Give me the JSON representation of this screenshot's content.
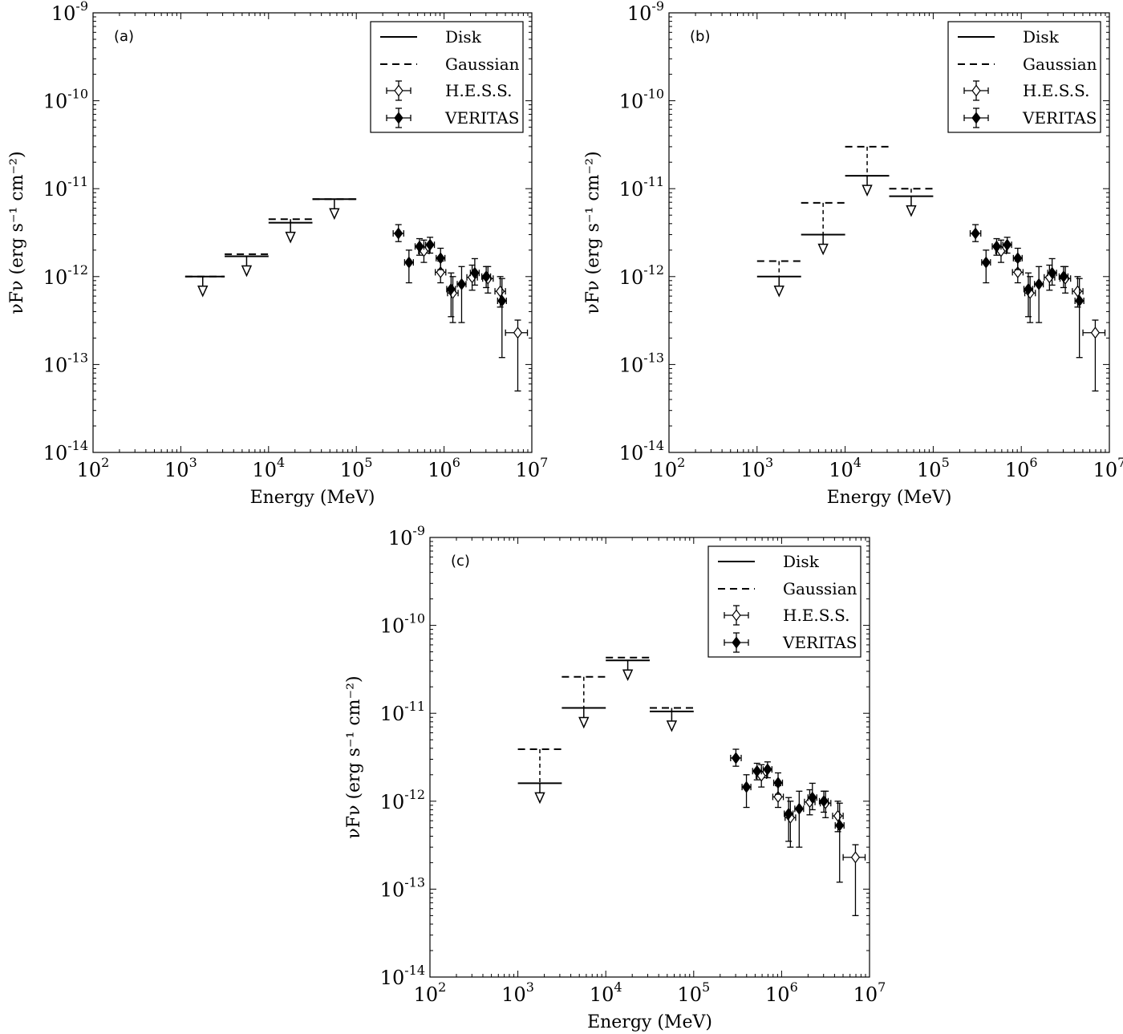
{
  "chart_data": [
    {
      "type": "scatter",
      "panel_label": "(a)",
      "title": "",
      "xlabel": "Energy (MeV)",
      "ylabel": "νFν (erg s⁻¹ cm⁻²)",
      "xscale": "log",
      "yscale": "log",
      "xlim": [
        100,
        10000000
      ],
      "ylim": [
        1e-14,
        1e-09
      ],
      "x_tick_labels": [
        "10^2",
        "10^3",
        "10^4",
        "10^5",
        "10^6",
        "10^7"
      ],
      "y_tick_labels": [
        "10^-14",
        "10^-13",
        "10^-12",
        "10^-11",
        "10^-10",
        "10^-9"
      ],
      "grid": false,
      "legend_position": "top-right",
      "legend": [
        "Disk",
        "Gaussian",
        "H.E.S.S.",
        "VERITAS"
      ],
      "upper_limits": {
        "disk": [
          {
            "x_low": 1122,
            "x_high": 3162,
            "x": 1778,
            "y": 1e-12
          },
          {
            "x_low": 3162,
            "x_high": 10000,
            "x": 5623,
            "y": 1.7e-12
          },
          {
            "x_low": 10000,
            "x_high": 31623,
            "x": 17783,
            "y": 4.1e-12
          },
          {
            "x_low": 31623,
            "x_high": 100000,
            "x": 56234,
            "y": 7.6e-12
          }
        ],
        "gaussian": [
          {
            "x_low": 1122,
            "x_high": 3162,
            "x": 1778,
            "y": 1e-12
          },
          {
            "x_low": 3162,
            "x_high": 10000,
            "x": 5623,
            "y": 1.8e-12
          },
          {
            "x_low": 10000,
            "x_high": 31623,
            "x": 17783,
            "y": 4.5e-12
          },
          {
            "x_low": 31623,
            "x_high": 100000,
            "x": 56234,
            "y": 7.6e-12
          }
        ]
      }
    },
    {
      "type": "scatter",
      "panel_label": "(b)",
      "title": "",
      "xlabel": "Energy (MeV)",
      "ylabel": "νFν (erg s⁻¹ cm⁻²)",
      "xscale": "log",
      "yscale": "log",
      "xlim": [
        100,
        10000000
      ],
      "ylim": [
        1e-14,
        1e-09
      ],
      "x_tick_labels": [
        "10^2",
        "10^3",
        "10^4",
        "10^5",
        "10^6",
        "10^7"
      ],
      "y_tick_labels": [
        "10^-14",
        "10^-13",
        "10^-12",
        "10^-11",
        "10^-10",
        "10^-9"
      ],
      "grid": false,
      "legend_position": "top-right",
      "legend": [
        "Disk",
        "Gaussian",
        "H.E.S.S.",
        "VERITAS"
      ],
      "upper_limits": {
        "disk": [
          {
            "x_low": 1000,
            "x_high": 3162,
            "x": 1778,
            "y": 1e-12
          },
          {
            "x_low": 3162,
            "x_high": 10000,
            "x": 5623,
            "y": 3e-12
          },
          {
            "x_low": 10000,
            "x_high": 31623,
            "x": 17783,
            "y": 1.4e-11
          },
          {
            "x_low": 31623,
            "x_high": 100000,
            "x": 56234,
            "y": 8.2e-12
          }
        ],
        "gaussian": [
          {
            "x_low": 1000,
            "x_high": 3162,
            "x": 1778,
            "y": 1.5e-12
          },
          {
            "x_low": 3162,
            "x_high": 10000,
            "x": 5623,
            "y": 6.9e-12
          },
          {
            "x_low": 10000,
            "x_high": 31623,
            "x": 17783,
            "y": 3e-11
          },
          {
            "x_low": 31623,
            "x_high": 100000,
            "x": 56234,
            "y": 1e-11
          }
        ]
      }
    },
    {
      "type": "scatter",
      "panel_label": "(c)",
      "title": "",
      "xlabel": "Energy (MeV)",
      "ylabel": "νFν (erg s⁻¹ cm⁻²)",
      "xscale": "log",
      "yscale": "log",
      "xlim": [
        100,
        10000000
      ],
      "ylim": [
        1e-14,
        1e-09
      ],
      "x_tick_labels": [
        "10^2",
        "10^3",
        "10^4",
        "10^5",
        "10^6",
        "10^7"
      ],
      "y_tick_labels": [
        "10^-14",
        "10^-13",
        "10^-12",
        "10^-11",
        "10^-10",
        "10^-9"
      ],
      "grid": false,
      "legend_position": "top-right",
      "legend": [
        "Disk",
        "Gaussian",
        "H.E.S.S.",
        "VERITAS"
      ],
      "upper_limits": {
        "disk": [
          {
            "x_low": 1000,
            "x_high": 3162,
            "x": 1778,
            "y": 1.6e-12
          },
          {
            "x_low": 3162,
            "x_high": 10000,
            "x": 5623,
            "y": 1.15e-11
          },
          {
            "x_low": 10000,
            "x_high": 31623,
            "x": 17783,
            "y": 4e-11
          },
          {
            "x_low": 31623,
            "x_high": 100000,
            "x": 56234,
            "y": 1.05e-11
          }
        ],
        "gaussian": [
          {
            "x_low": 1000,
            "x_high": 3162,
            "x": 1778,
            "y": 3.9e-12
          },
          {
            "x_low": 3162,
            "x_high": 10000,
            "x": 5623,
            "y": 2.6e-11
          },
          {
            "x_low": 10000,
            "x_high": 31623,
            "x": 17783,
            "y": 4.3e-11
          },
          {
            "x_low": 31623,
            "x_high": 100000,
            "x": 56234,
            "y": 1.15e-11
          }
        ]
      }
    }
  ],
  "measurements": {
    "hess": [
      {
        "x": 589000,
        "y": 1.95e-12,
        "xlo": 513000,
        "xhi": 676000,
        "ylo": 1.45e-12,
        "yhi": 2.6e-12
      },
      {
        "x": 912000,
        "y": 1.12e-12,
        "xlo": 794000,
        "xhi": 1047000,
        "ylo": 8.5e-13,
        "yhi": 1.5e-12
      },
      {
        "x": 1259000,
        "y": 6.5e-13,
        "xlo": 1096000,
        "xhi": 1445000,
        "ylo": 3e-13,
        "yhi": 1e-12
      },
      {
        "x": 2089000,
        "y": 9.8e-13,
        "xlo": 1820000,
        "xhi": 2399000,
        "ylo": 7e-13,
        "yhi": 1.35e-12
      },
      {
        "x": 3162000,
        "y": 9.5e-13,
        "xlo": 2754000,
        "xhi": 3631000,
        "ylo": 6.5e-13,
        "yhi": 1.3e-12
      },
      {
        "x": 4365000,
        "y": 6.8e-13,
        "xlo": 3802000,
        "xhi": 5012000,
        "ylo": 4.5e-13,
        "yhi": 1e-12
      },
      {
        "x": 6918000,
        "y": 2.3e-13,
        "xlo": 5012000,
        "xhi": 8913000,
        "ylo": 5e-14,
        "yhi": 3.2e-13
      }
    ],
    "veritas": [
      {
        "x": 302000,
        "y": 3.1e-12,
        "xlo": 263000,
        "xhi": 347000,
        "ylo": 2.5e-12,
        "yhi": 3.9e-12
      },
      {
        "x": 398000,
        "y": 1.45e-12,
        "xlo": 355000,
        "xhi": 447000,
        "ylo": 8.5e-13,
        "yhi": 2e-12
      },
      {
        "x": 525000,
        "y": 2.2e-12,
        "xlo": 468000,
        "xhi": 589000,
        "ylo": 1.75e-12,
        "yhi": 2.7e-12
      },
      {
        "x": 692000,
        "y": 2.3e-12,
        "xlo": 617000,
        "xhi": 776000,
        "ylo": 1.85e-12,
        "yhi": 2.8e-12
      },
      {
        "x": 912000,
        "y": 1.62e-12,
        "xlo": 813000,
        "xhi": 1023000,
        "ylo": 1.2e-12,
        "yhi": 2.1e-12
      },
      {
        "x": 1202000,
        "y": 7.2e-13,
        "xlo": 1072000,
        "xhi": 1349000,
        "ylo": 3.5e-13,
        "yhi": 1.1e-12
      },
      {
        "x": 1585000,
        "y": 8.2e-13,
        "xlo": 1413000,
        "xhi": 1778000,
        "ylo": 3e-13,
        "yhi": 1.3e-12
      },
      {
        "x": 2239000,
        "y": 1.1e-12,
        "xlo": 1995000,
        "xhi": 2512000,
        "ylo": 8e-13,
        "yhi": 1.6e-12
      },
      {
        "x": 3020000,
        "y": 1e-12,
        "xlo": 2692000,
        "xhi": 3388000,
        "ylo": 7.5e-13,
        "yhi": 1.3e-12
      },
      {
        "x": 4571000,
        "y": 5.3e-13,
        "xlo": 4074000,
        "xhi": 5129000,
        "ylo": 1.2e-13,
        "yhi": 9.5e-13
      }
    ]
  }
}
